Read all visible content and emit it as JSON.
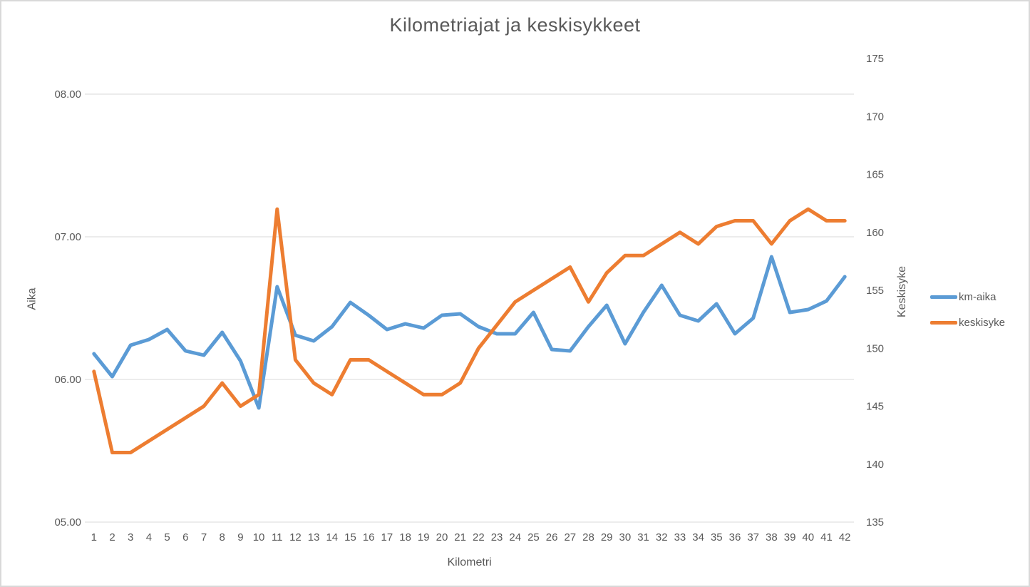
{
  "chart_title": "Kilometriajat ja keskisykkeet",
  "legend": {
    "entries": [
      {
        "label": "km-aika",
        "color": "#5B9BD5"
      },
      {
        "label": "keskisyke",
        "color": "#ED7D31"
      }
    ],
    "position": "right"
  },
  "colors": {
    "series_blue": "#5B9BD5",
    "series_orange": "#ED7D31",
    "gridline": "#D9D9D9",
    "text": "#595959",
    "border": "#D9D9D9",
    "background": "#FFFFFF"
  },
  "chart_data": {
    "type": "line",
    "title": "Kilometriajat ja keskisykkeet",
    "xlabel": "Kilometri",
    "x": [
      1,
      2,
      3,
      4,
      5,
      6,
      7,
      8,
      9,
      10,
      11,
      12,
      13,
      14,
      15,
      16,
      17,
      18,
      19,
      20,
      21,
      22,
      23,
      24,
      25,
      26,
      27,
      28,
      29,
      30,
      31,
      32,
      33,
      34,
      35,
      36,
      37,
      38,
      39,
      40,
      41,
      42
    ],
    "series": [
      {
        "name": "km-aika",
        "axis": "left",
        "color": "#5B9BD5",
        "values": [
          6.18,
          6.02,
          6.24,
          6.28,
          6.35,
          6.2,
          6.17,
          6.33,
          6.13,
          5.8,
          6.65,
          6.31,
          6.27,
          6.37,
          6.54,
          6.45,
          6.35,
          6.39,
          6.36,
          6.45,
          6.46,
          6.37,
          6.32,
          6.32,
          6.47,
          6.21,
          6.2,
          6.37,
          6.52,
          6.25,
          6.47,
          6.66,
          6.45,
          6.41,
          6.53,
          6.32,
          6.43,
          6.86,
          6.47,
          6.49,
          6.55,
          6.72
        ]
      },
      {
        "name": "keskisyke",
        "axis": "right",
        "color": "#ED7D31",
        "values": [
          148,
          141,
          141,
          142,
          143,
          144,
          145,
          147,
          145,
          146,
          162,
          149,
          147,
          146,
          149,
          149,
          148,
          147,
          146,
          146,
          147,
          150,
          152,
          154,
          155,
          156,
          157,
          154,
          156.5,
          158,
          158,
          159,
          160,
          159,
          160.5,
          161,
          161,
          159,
          161,
          162,
          161,
          161
        ]
      }
    ],
    "left_axis": {
      "label": "Aika",
      "tick_labels": [
        "08.00",
        "07.00",
        "06.00",
        "05.00"
      ],
      "tick_values": [
        8,
        7,
        6,
        5
      ],
      "min": 5,
      "max": 8.25
    },
    "right_axis": {
      "label": "Keskisyke",
      "tick_values": [
        175,
        170,
        165,
        160,
        155,
        150,
        145,
        140,
        135
      ],
      "min": 135,
      "max": 175
    },
    "grid": true,
    "legend_position": "right"
  }
}
